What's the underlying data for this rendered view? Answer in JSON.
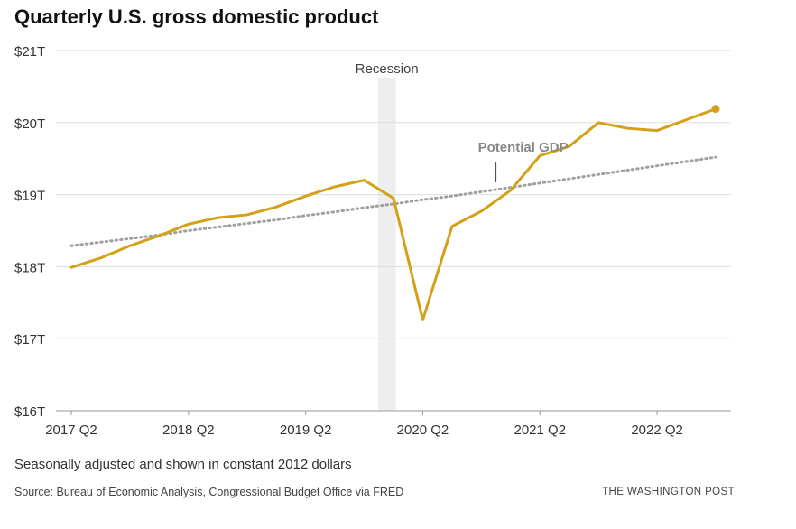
{
  "title": "Quarterly U.S. gross domestic product",
  "subtitle": "Seasonally adjusted and shown in constant 2012 dollars",
  "source": "Source: Bureau of Economic Analysis, Congressional Budget Office via FRED",
  "credit": "THE WASHINGTON POST",
  "colors": {
    "gdp_line": "#d4a017",
    "potential_line": "#a0a0a0",
    "recession_band": "#eeeeee",
    "gridline": "#dddddd"
  },
  "chart_data": {
    "type": "line",
    "title": "Quarterly U.S. gross domestic product",
    "x": [
      "2017 Q2",
      "2017 Q3",
      "2017 Q4",
      "2018 Q1",
      "2018 Q2",
      "2018 Q3",
      "2018 Q4",
      "2019 Q1",
      "2019 Q2",
      "2019 Q3",
      "2019 Q4",
      "2020 Q1",
      "2020 Q2",
      "2020 Q3",
      "2020 Q4",
      "2021 Q1",
      "2021 Q2",
      "2021 Q3",
      "2021 Q4",
      "2022 Q1",
      "2022 Q2",
      "2022 Q3",
      "2022 Q4"
    ],
    "series": [
      {
        "name": "",
        "values": [
          17.99,
          18.12,
          18.29,
          18.43,
          18.59,
          18.68,
          18.72,
          18.83,
          18.98,
          19.11,
          19.2,
          18.95,
          17.26,
          18.56,
          18.77,
          19.06,
          19.54,
          19.67,
          20.0,
          19.92,
          19.89,
          20.04,
          20.19
        ]
      },
      {
        "name": "Potential GDP",
        "values": [
          18.29,
          18.34,
          18.39,
          18.44,
          18.5,
          18.55,
          18.6,
          18.65,
          18.71,
          18.76,
          18.82,
          18.87,
          18.93,
          18.98,
          19.04,
          19.1,
          19.16,
          19.22,
          19.28,
          19.34,
          19.4,
          19.46,
          19.52
        ]
      }
    ],
    "xtick_labels": [
      "2017 Q2",
      "2018 Q2",
      "2019 Q2",
      "2020 Q2",
      "2021 Q2",
      "2022 Q2"
    ],
    "ytick_labels": [
      "$16T",
      "$17T",
      "$18T",
      "$19T",
      "$20T",
      "$21T"
    ],
    "yticks": [
      16,
      17,
      18,
      19,
      20,
      21
    ],
    "ylim": [
      16,
      21
    ],
    "ylabel": "",
    "xlabel": "",
    "grid": true,
    "recession": {
      "label": "Recession",
      "start": "2019 Q4",
      "end": "2020 Q1"
    },
    "annotations": [
      {
        "text": "Potential GDP",
        "series": "Potential GDP"
      }
    ]
  }
}
